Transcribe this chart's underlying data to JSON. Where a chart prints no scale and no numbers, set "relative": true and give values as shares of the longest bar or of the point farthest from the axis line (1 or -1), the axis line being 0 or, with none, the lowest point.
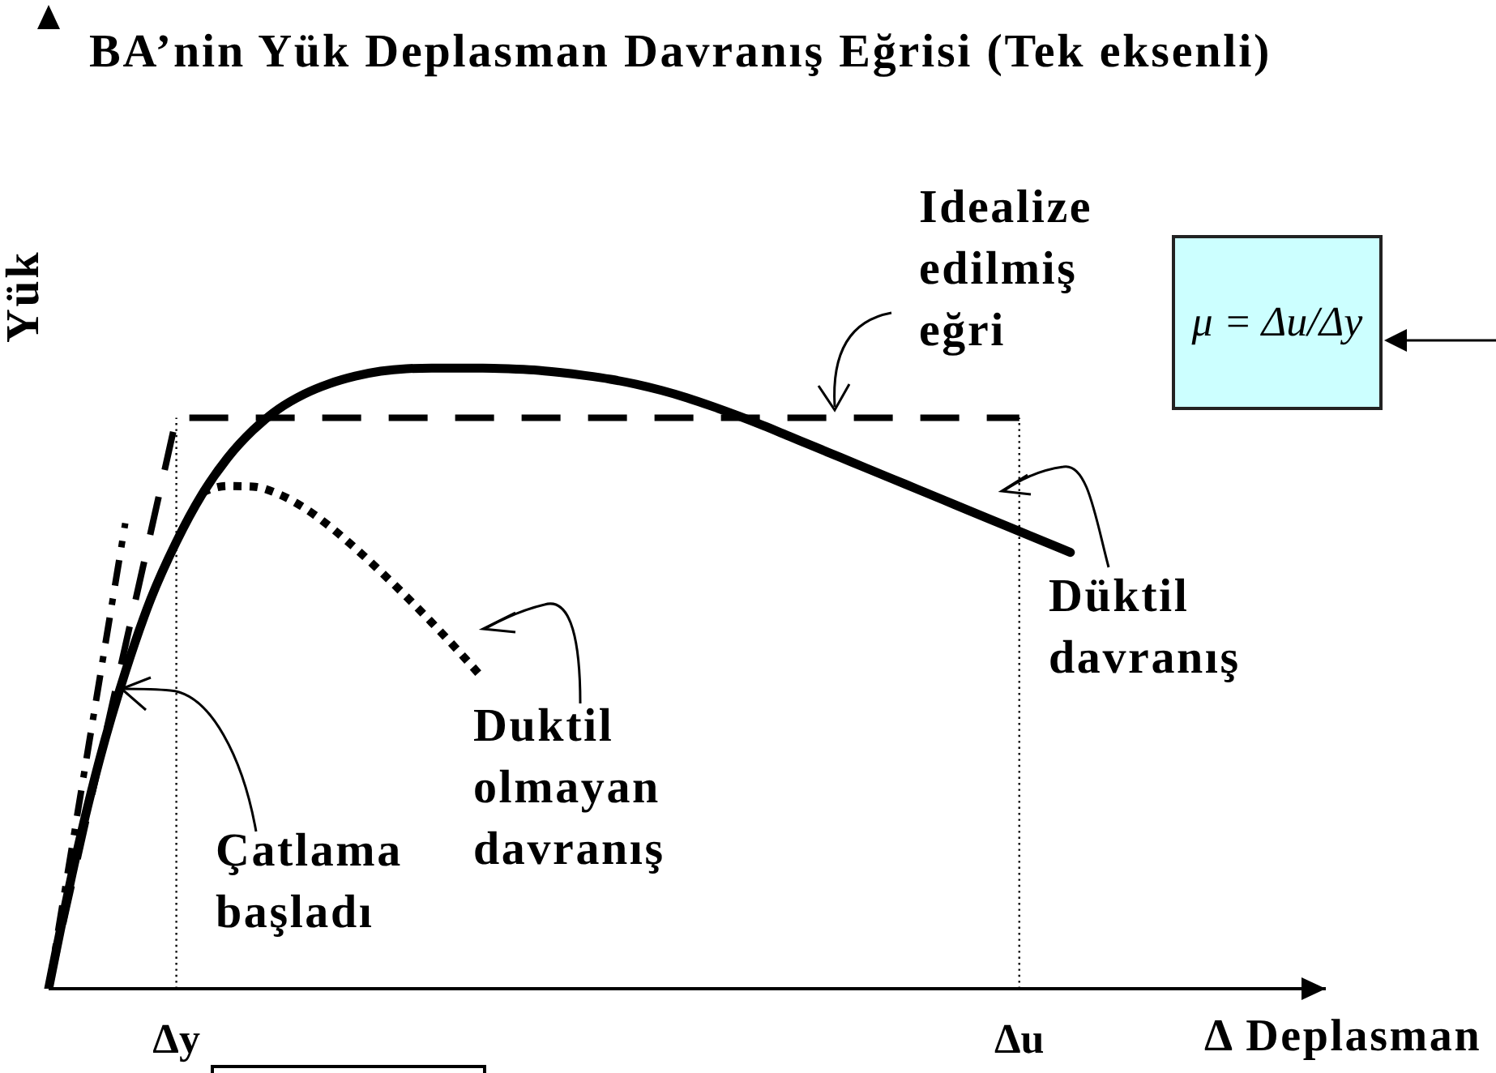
{
  "chart_data": {
    "type": "line",
    "title": "BA’nin Yük Deplasman Davranış Eğrisi (Tek eksenli)",
    "xlabel": "Δ Deplasman",
    "ylabel": "Yük",
    "relative": true,
    "categories": [
      null,
      null,
      null,
      null,
      null,
      "Δy",
      null,
      null,
      null,
      null,
      null,
      null,
      null,
      null,
      null,
      null,
      null,
      null,
      null,
      null,
      null,
      null,
      null,
      null,
      null,
      null,
      null,
      null,
      null,
      null,
      null,
      null,
      null,
      null,
      null,
      null,
      null,
      null,
      "Δu",
      null,
      null,
      null,
      null,
      null,
      null,
      null,
      null,
      null,
      null,
      null,
      null
    ],
    "series": [
      {
        "color": "#000000",
        "line_style": "solid",
        "values": [
          0,
          0.2,
          0.37,
          0.51,
          0.628,
          0.72,
          0.796,
          0.855,
          0.9,
          0.934,
          0.958,
          0.975,
          0.987,
          0.995,
          0.999,
          1,
          1,
          1,
          0.999,
          0.997,
          0.993,
          0.988,
          0.982,
          0.974,
          0.964,
          0.952,
          0.938,
          0.923,
          0.907,
          0.89,
          0.873,
          0.856,
          0.839,
          0.822,
          0.805,
          0.788,
          0.771,
          0.754,
          0.737,
          0.72,
          0.703,
          null,
          null,
          null,
          null,
          null,
          null,
          null,
          null,
          null,
          null
        ]
      },
      {
        "color": "#000000",
        "line_style": "dashed",
        "values": [
          0,
          0.184,
          0.368,
          0.552,
          0.736,
          0.92,
          0.92,
          0.92,
          0.92,
          0.92,
          0.92,
          0.92,
          0.92,
          0.92,
          0.92,
          0.92,
          0.92,
          0.92,
          0.92,
          0.92,
          0.92,
          0.92,
          0.92,
          0.92,
          0.92,
          0.92,
          0.92,
          0.92,
          0.92,
          0.92,
          0.92,
          0.92,
          0.92,
          0.92,
          0.92,
          0.92,
          0.92,
          0.92,
          0.92,
          null,
          null,
          null,
          null,
          null,
          null,
          null,
          null,
          null,
          null,
          null,
          null
        ]
      },
      {
        "color": "#000000",
        "line_style": "dashdot",
        "values": [
          0,
          0.25,
          0.5,
          0.75,
          null,
          null,
          null,
          null,
          null,
          null,
          null,
          null,
          null,
          null,
          null,
          null,
          null,
          null,
          null,
          null,
          null,
          null,
          null,
          null,
          null,
          null,
          null,
          null,
          null,
          null,
          null,
          null,
          null,
          null,
          null,
          null,
          null,
          null,
          null,
          null,
          null,
          null,
          null,
          null,
          null,
          null,
          null,
          null,
          null,
          null,
          null
        ]
      },
      {
        "color": "#000000",
        "line_style": "dotted",
        "values": [
          null,
          null,
          null,
          null,
          null,
          null,
          0.8,
          0.81,
          0.809,
          0.797,
          0.775,
          0.745,
          0.71,
          0.672,
          0.632,
          0.59,
          0.546,
          0.5,
          null,
          null,
          null,
          null,
          null,
          null,
          null,
          null,
          null,
          null,
          null,
          null,
          null,
          null,
          null,
          null,
          null,
          null,
          null,
          null,
          null,
          null,
          null,
          null,
          null,
          null,
          null,
          null,
          null,
          null,
          null,
          null,
          null
        ]
      }
    ],
    "ref_lines": [
      {
        "axis": "x",
        "value": "Δy",
        "line_style": "dotted",
        "color": "#000000"
      },
      {
        "axis": "x",
        "value": "Δu",
        "line_style": "dotted",
        "color": "#000000"
      }
    ],
    "annotations": [
      "Idealize\nedilmiş\neğri",
      "Düktil\ndavranış",
      "Duktil\nolmayan\ndavranış",
      "Çatlama\nbaşladı",
      "μ = Δu/Δy"
    ]
  }
}
